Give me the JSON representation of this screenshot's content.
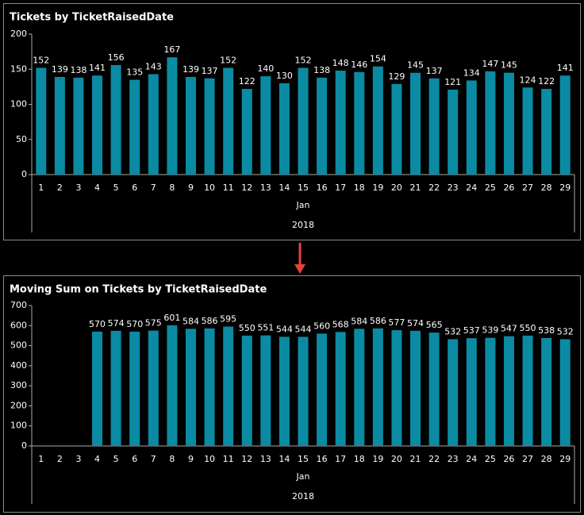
{
  "chart_data": [
    {
      "type": "bar",
      "title": "Tickets by TicketRaisedDate",
      "categories": [
        "1",
        "2",
        "3",
        "4",
        "5",
        "6",
        "7",
        "8",
        "9",
        "10",
        "11",
        "12",
        "13",
        "14",
        "15",
        "16",
        "17",
        "18",
        "19",
        "20",
        "21",
        "22",
        "23",
        "24",
        "25",
        "26",
        "27",
        "28",
        "29"
      ],
      "values": [
        152,
        139,
        138,
        141,
        156,
        135,
        143,
        167,
        139,
        137,
        152,
        122,
        140,
        130,
        152,
        138,
        148,
        146,
        154,
        129,
        145,
        137,
        121,
        134,
        147,
        145,
        124,
        122,
        141
      ],
      "x_group_labels": [
        "Jan",
        "2018"
      ],
      "color": "#0b8ba3",
      "ylim": [
        0,
        200
      ],
      "yticks": [
        0,
        50,
        100,
        150,
        200
      ]
    },
    {
      "type": "bar",
      "title": "Moving Sum on Tickets by TicketRaisedDate",
      "categories": [
        "1",
        "2",
        "3",
        "4",
        "5",
        "6",
        "7",
        "8",
        "9",
        "10",
        "11",
        "12",
        "13",
        "14",
        "15",
        "16",
        "17",
        "18",
        "19",
        "20",
        "21",
        "22",
        "23",
        "24",
        "25",
        "26",
        "27",
        "28",
        "29"
      ],
      "values": [
        null,
        null,
        null,
        570,
        574,
        570,
        575,
        601,
        584,
        586,
        595,
        550,
        551,
        544,
        544,
        560,
        568,
        584,
        586,
        577,
        574,
        565,
        532,
        537,
        539,
        547,
        550,
        538,
        532
      ],
      "x_group_labels": [
        "Jan",
        "2018"
      ],
      "color": "#0b8ba3",
      "ylim": [
        0,
        700
      ],
      "yticks": [
        0,
        100,
        200,
        300,
        400,
        500,
        600,
        700
      ]
    }
  ]
}
